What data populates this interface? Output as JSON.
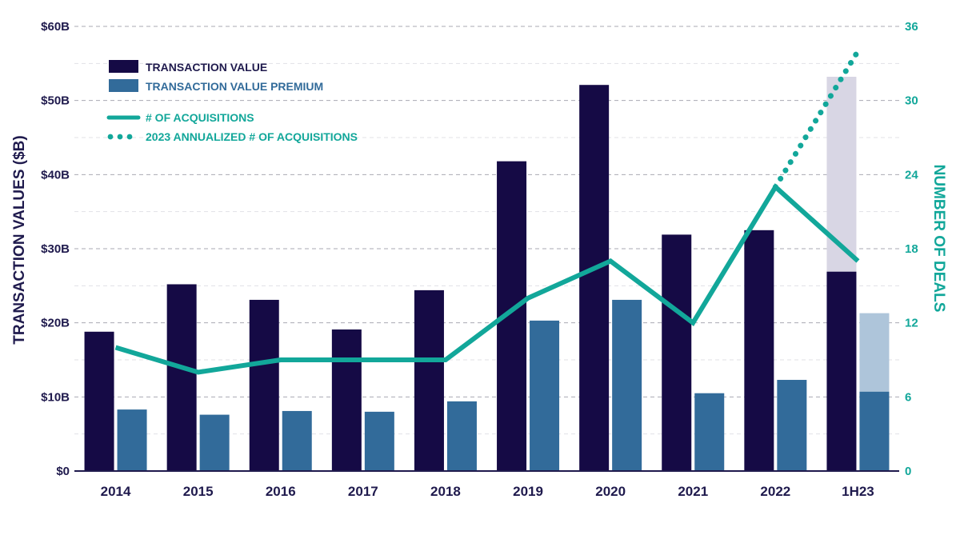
{
  "chart_data": {
    "type": "bar",
    "categories": [
      "2014",
      "2015",
      "2016",
      "2017",
      "2018",
      "2019",
      "2020",
      "2021",
      "2022",
      "1H23"
    ],
    "series": [
      {
        "name": "TRANSACTION VALUE",
        "type": "bar",
        "axis": "left",
        "values": [
          18.8,
          25.2,
          23.1,
          19.1,
          24.4,
          41.8,
          52.1,
          31.9,
          32.5,
          26.9
        ],
        "color": "#150a45"
      },
      {
        "name": "TRANSACTION VALUE PREMIUM",
        "type": "bar",
        "axis": "left",
        "values": [
          8.3,
          7.6,
          8.1,
          8.0,
          9.4,
          20.3,
          23.1,
          10.5,
          12.3,
          10.7
        ],
        "color": "#326b9a"
      },
      {
        "name": "# OF ACQUISITIONS",
        "type": "line",
        "axis": "right",
        "values": [
          10,
          8,
          9,
          9,
          9,
          14,
          17,
          12,
          23,
          17
        ],
        "color": "#12a79a"
      },
      {
        "name": "2023 ANNUALIZED # OF ACQUISITIONS",
        "type": "line-dotted",
        "axis": "right",
        "points": [
          {
            "x": "2022",
            "y": 23
          },
          {
            "x": "1H23",
            "y": 34
          }
        ],
        "color": "#12a79a"
      }
    ],
    "annualized_bars": {
      "category": "1H23",
      "transaction_value": 53.2,
      "transaction_value_premium": 21.3,
      "colors": {
        "transaction_value": "#d8d6e4",
        "transaction_value_premium": "#aec5da"
      }
    },
    "ylabel": "TRANSACTION VALUES ($B)",
    "y2label": "NUMBER OF DEALS",
    "ylim": [
      0,
      60
    ],
    "y2lim": [
      0,
      36
    ],
    "yticks": [
      "$0",
      "$10B",
      "$20B",
      "$30B",
      "$40B",
      "$50B",
      "$60B"
    ],
    "y2ticks": [
      "0",
      "6",
      "12",
      "18",
      "24",
      "30",
      "36"
    ],
    "grid": true,
    "legend_position": "top-left"
  }
}
